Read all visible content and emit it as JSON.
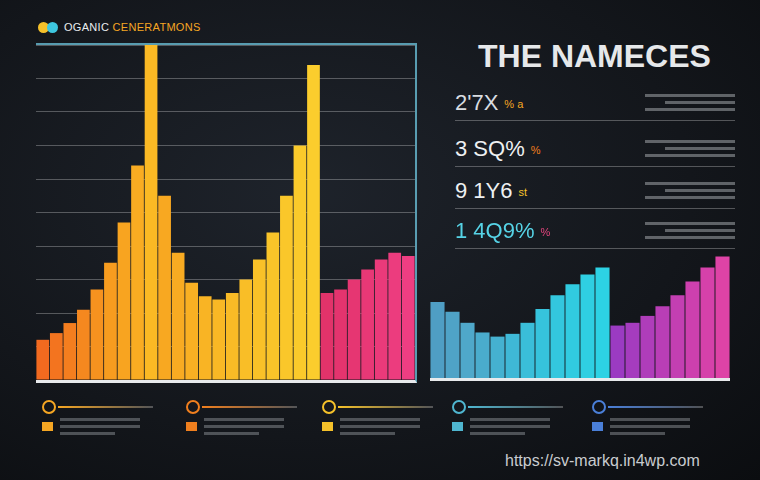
{
  "header": {
    "title": "THE NAMECES"
  },
  "stats": [
    {
      "value": "2'7X",
      "unit": "% a"
    },
    {
      "value": "3 SQ%",
      "unit": "%"
    },
    {
      "value": "9 1Y6",
      "unit": "st"
    },
    {
      "value": "1 4Q9%",
      "unit": "%"
    }
  ],
  "watermark": "https://sv-markq.in4wp.com",
  "chart_data": [
    {
      "type": "bar",
      "title": "OGANIC CENERATMONS",
      "categories": [
        null,
        null,
        null,
        null,
        null,
        null,
        null,
        null,
        null,
        null,
        null,
        null,
        null,
        null,
        null,
        null,
        null,
        null,
        null,
        null,
        null,
        null,
        null,
        null,
        null,
        null,
        null,
        null
      ],
      "values": [
        12,
        14,
        17,
        21,
        27,
        35,
        47,
        64,
        100,
        55,
        38,
        29,
        25,
        24,
        26,
        30,
        36,
        44,
        55,
        70,
        94,
        26,
        27,
        30,
        33,
        36,
        38,
        37
      ],
      "colors": [
        "#f26a1f",
        "#f3741f",
        "#f47e1f",
        "#f5881f",
        "#f6921f",
        "#f79c1f",
        "#f8a420",
        "#f9ac22",
        "#fbb924",
        "#f8a821",
        "#f8ab22",
        "#f9b023",
        "#f9b424",
        "#f9b825",
        "#f9bb26",
        "#f9be27",
        "#f9c128",
        "#f9c429",
        "#fac72a",
        "#faca2b",
        "#fbcd2d",
        "#e2336a",
        "#e4346e",
        "#e63672",
        "#e83876",
        "#ea3a7a",
        "#ec3c7e",
        "#ee3e82"
      ],
      "ylim": [
        0,
        100
      ],
      "yticks": [
        0,
        10,
        20,
        30,
        40,
        50,
        60,
        70,
        80,
        90,
        100
      ],
      "grid": true,
      "tick_labels": false
    },
    {
      "type": "bar",
      "categories": [
        null,
        null,
        null,
        null,
        null,
        null,
        null,
        null,
        null,
        null,
        null,
        null,
        null,
        null,
        null,
        null,
        null,
        null,
        null,
        null
      ],
      "values": [
        55,
        48,
        40,
        33,
        30,
        32,
        40,
        50,
        60,
        68,
        75,
        80,
        38,
        40,
        45,
        52,
        60,
        70,
        80,
        88
      ],
      "colors": [
        "#4f9ec4",
        "#4fa3c7",
        "#4fa8ca",
        "#4aaccd",
        "#45b1d0",
        "#3fb8d6",
        "#3abed9",
        "#36c3dc",
        "#33c7de",
        "#31cbe0",
        "#2fcfe2",
        "#2dd2e4",
        "#9b3bc2",
        "#a53cbe",
        "#af3dba",
        "#b93eb6",
        "#c33fb2",
        "#cd40ae",
        "#d641aa",
        "#de43a6"
      ],
      "ylim": [
        0,
        100
      ],
      "yticks": [
        0,
        100
      ],
      "grid": false,
      "tick_labels": false
    }
  ]
}
